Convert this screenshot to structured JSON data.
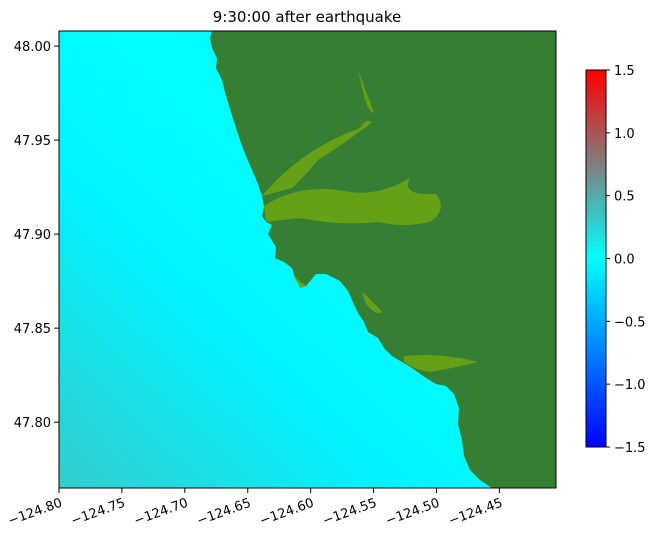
{
  "chart_data": {
    "type": "heatmap",
    "title": "9:30:00 after earthquake",
    "xlabel": "",
    "ylabel": "",
    "xlim": [
      -124.8,
      -124.405
    ],
    "ylim": [
      47.765,
      48.008
    ],
    "x_ticks": [
      -124.8,
      -124.75,
      -124.7,
      -124.65,
      -124.6,
      -124.55,
      -124.5,
      -124.45
    ],
    "x_tick_labels": [
      "−124.80",
      "−124.75",
      "−124.70",
      "−124.65",
      "−124.60",
      "−124.55",
      "−124.50",
      "−124.45"
    ],
    "y_ticks": [
      47.8,
      47.85,
      47.9,
      47.95,
      48.0
    ],
    "y_tick_labels": [
      "47.80",
      "47.85",
      "47.90",
      "47.95",
      "48.00"
    ],
    "colorbar": {
      "range": [
        -1.5,
        1.5
      ],
      "ticks": [
        -1.5,
        -1.0,
        -0.5,
        0.0,
        0.5,
        1.0,
        1.5
      ],
      "tick_labels": [
        "−1.5",
        "−1.0",
        "−0.5",
        "0.0",
        "0.5",
        "1.0",
        "1.5"
      ],
      "colormap_stops": [
        "#0000ff",
        "#0080ff",
        "#00ffff",
        "#808080",
        "#ff0000"
      ]
    },
    "colors": {
      "land": "#367e33",
      "inundated_land": "#6aa514",
      "water_deep_offshore": "#33cccc",
      "water_mid": "#00e8ff",
      "water_nearshore": "#00d8ff"
    },
    "grid": false
  }
}
